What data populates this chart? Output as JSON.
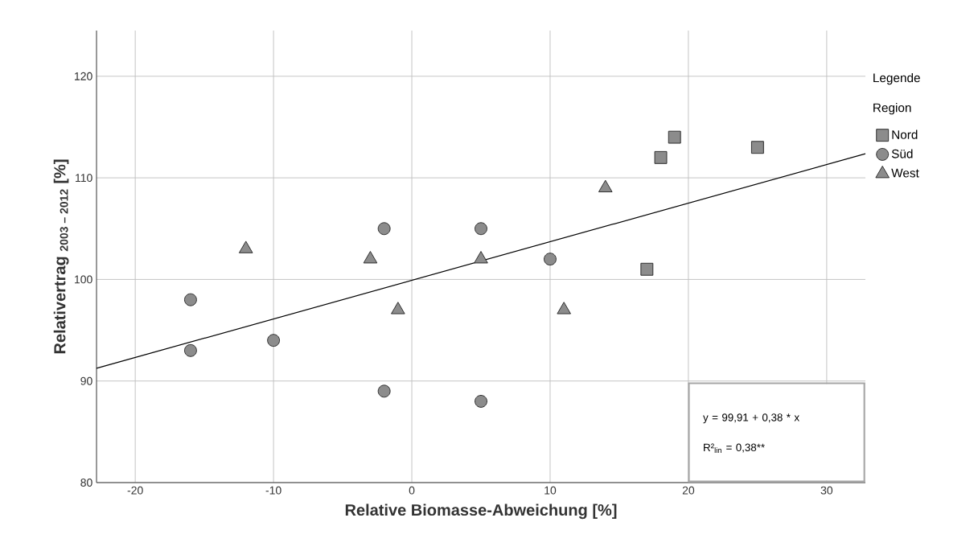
{
  "chart_data": {
    "type": "scatter",
    "xlabel": "Relative Biomasse-Abweichung [%]",
    "ylabel": "Relativertrag $_{2003 – 2012}$ [%]",
    "legend_title": "Region",
    "annotations": [
      "Legende",
      "y = 99,91 + 0,38 * x",
      "R²$_{lin}$ = 0,38**"
    ],
    "xlim": [
      -22.8,
      32.8
    ],
    "ylim": [
      80,
      124.5
    ],
    "xticks": [
      -20,
      -10,
      0,
      10,
      20,
      30
    ],
    "yticks": [
      80,
      90,
      100,
      110,
      120
    ],
    "grid": true,
    "legend": "right",
    "series": [
      {
        "name": "Nord",
        "color": "#8c8c8c",
        "marker": "square",
        "x": [
          17,
          18,
          19,
          25
        ],
        "values": [
          101,
          112,
          114,
          113
        ]
      },
      {
        "name": "Süd",
        "color": "#8c8c8c",
        "marker": "circle",
        "x": [
          -16,
          -16,
          -10,
          -2,
          -2,
          5,
          5,
          10
        ],
        "values": [
          98,
          93,
          94,
          105,
          89,
          105,
          88,
          102
        ]
      },
      {
        "name": "West",
        "color": "#8c8c8c",
        "marker": "triangle",
        "x": [
          -12,
          -3,
          -1,
          5,
          11,
          14
        ],
        "values": [
          103,
          102,
          97,
          102,
          97,
          109
        ]
      },
      {
        "type": "line",
        "color": "#000000",
        "marker": "none",
        "x": [
          -22.8,
          32.8
        ],
        "values": [
          91.25,
          112.37
        ]
      }
    ]
  }
}
